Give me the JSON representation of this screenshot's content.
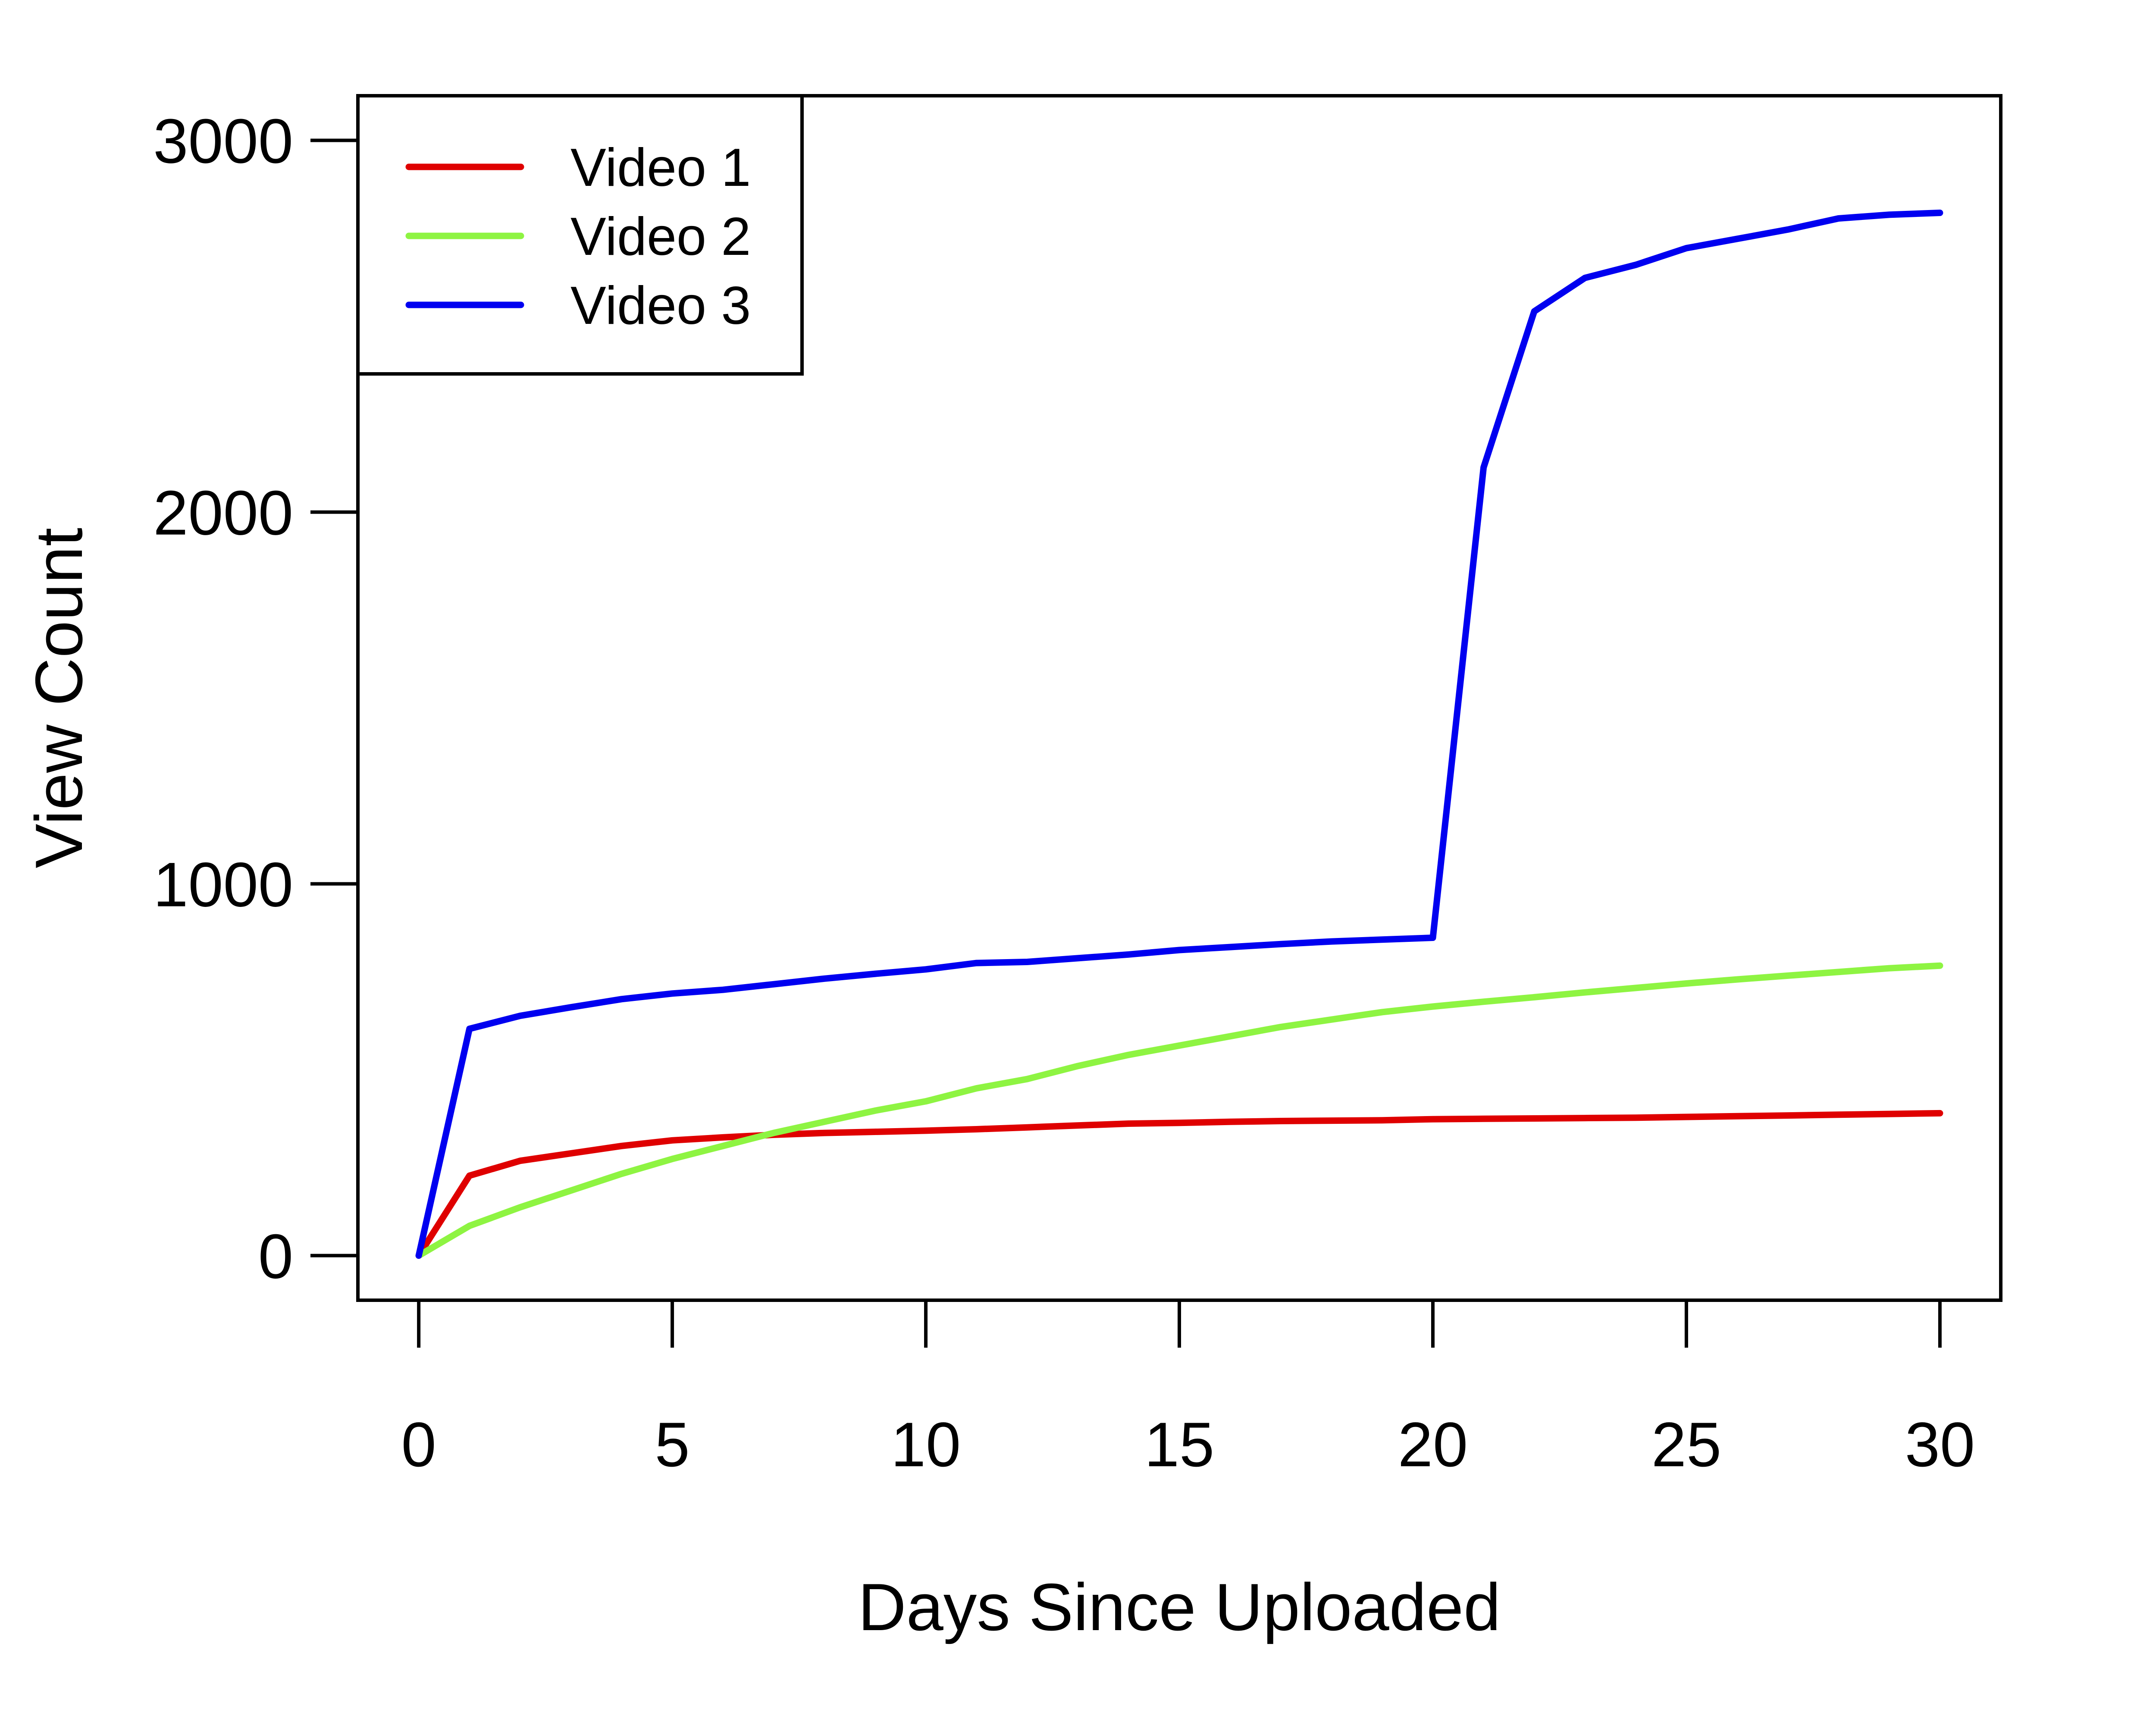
{
  "chart_data": {
    "type": "line",
    "title": "",
    "xlabel": "Days Since Uploaded",
    "ylabel": "View Count",
    "xlim": [
      -1.2,
      31.2
    ],
    "ylim": [
      -120,
      3120
    ],
    "xticks": [
      0,
      5,
      10,
      15,
      20,
      25,
      30
    ],
    "yticks": [
      0,
      1000,
      2000,
      3000
    ],
    "x_tick_labels": [
      "0",
      "5",
      "10",
      "15",
      "20",
      "25",
      "30"
    ],
    "y_tick_labels": [
      "0",
      "1000",
      "2000",
      "3000"
    ],
    "grid": false,
    "legend_position": "top-left",
    "x": [
      0,
      1,
      2,
      3,
      4,
      5,
      6,
      7,
      8,
      9,
      10,
      11,
      12,
      13,
      14,
      15,
      16,
      17,
      18,
      19,
      20,
      21,
      22,
      23,
      24,
      25,
      26,
      27,
      28,
      29,
      30
    ],
    "series": [
      {
        "name": "Video 1",
        "color": "#DF0000",
        "values": [
          0,
          215,
          255,
          275,
          295,
          310,
          318,
          325,
          330,
          333,
          336,
          340,
          345,
          350,
          355,
          357,
          360,
          362,
          363,
          364,
          367,
          368,
          369,
          370,
          371,
          373,
          375,
          377,
          379,
          381,
          383
        ]
      },
      {
        "name": "Video 2",
        "color": "#8EF442",
        "values": [
          0,
          80,
          130,
          175,
          220,
          260,
          295,
          330,
          360,
          390,
          415,
          450,
          475,
          510,
          540,
          565,
          590,
          615,
          635,
          655,
          670,
          683,
          695,
          708,
          720,
          732,
          743,
          753,
          763,
          773,
          780
        ]
      },
      {
        "name": "Video 3",
        "color": "#0000F0",
        "values": [
          0,
          610,
          645,
          668,
          690,
          705,
          715,
          730,
          745,
          758,
          770,
          787,
          790,
          800,
          810,
          822,
          830,
          838,
          845,
          850,
          855,
          2120,
          2540,
          2630,
          2665,
          2710,
          2735,
          2760,
          2790,
          2800,
          2805
        ]
      }
    ]
  }
}
